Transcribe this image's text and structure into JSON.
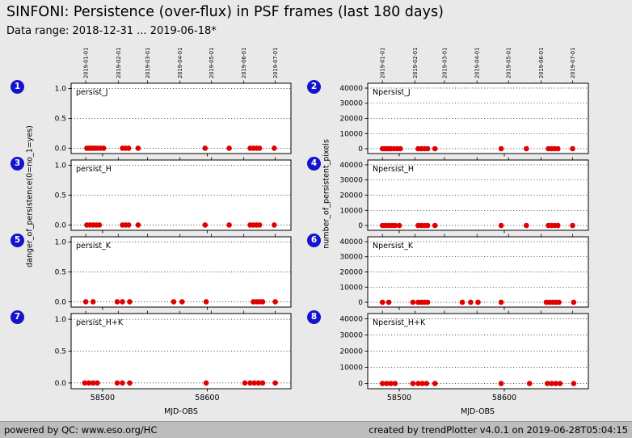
{
  "header": {
    "title": "SINFONI: Persistence (over-flux) in PSF frames (last 180 days)",
    "subtitle": "Data range: 2018-12-31 ... 2019-06-18*"
  },
  "footer": {
    "left": "powered by QC: www.eso.org/HC",
    "right": "created by trendPlotter v4.0.1 on 2019-06-28T05:04:15"
  },
  "colors": {
    "point": "#e00000",
    "badge": "#1414cc",
    "background": "#e9e9e9",
    "footer_bg": "#bdbdbd",
    "plot_bg": "#ffffff"
  },
  "axes": {
    "left_ylabel": "danger_of_persistence(0=no_1=yes)",
    "right_ylabel": "number_of_persistent_pixels",
    "xlabel": "MJD-OBS",
    "x_ticks": [
      58500,
      58600
    ],
    "x_range": [
      58470,
      58680
    ],
    "top_dates": [
      {
        "label": "2019-01-01",
        "mjd": 58484
      },
      {
        "label": "2019-02-01",
        "mjd": 58515
      },
      {
        "label": "2019-03-01",
        "mjd": 58543
      },
      {
        "label": "2019-04-01",
        "mjd": 58574
      },
      {
        "label": "2019-05-01",
        "mjd": 58604
      },
      {
        "label": "2019-06-01",
        "mjd": 58635
      },
      {
        "label": "2019-07-01",
        "mjd": 58665
      }
    ],
    "left_y": {
      "ticks": [
        0.0,
        0.5,
        1.0
      ],
      "labels": [
        "0.0",
        "0.5",
        "1.0"
      ],
      "range": [
        -0.09,
        1.09
      ]
    },
    "right_y": {
      "ticks": [
        0,
        10000,
        20000,
        30000,
        40000
      ],
      "labels": [
        "0",
        "10000",
        "20000",
        "30000",
        "40000"
      ],
      "range": [
        -3200,
        43200
      ]
    }
  },
  "chart_data": [
    {
      "id": 1,
      "type": "scatter",
      "label": "persist_J",
      "column": "left",
      "y_constant": 0,
      "x": [
        58485,
        58487,
        58489,
        58491,
        58493,
        58495,
        58498,
        58501,
        58519,
        58522,
        58525,
        58534,
        58598,
        58621,
        58641,
        58644,
        58647,
        58650,
        58664
      ]
    },
    {
      "id": 2,
      "type": "scatter",
      "label": "Npersist_J",
      "column": "right",
      "y_constant": 0,
      "x": [
        58484,
        58486,
        58488,
        58490,
        58492,
        58495,
        58498,
        58501,
        58518,
        58521,
        58524,
        58527,
        58534,
        58597,
        58621,
        58642,
        58645,
        58648,
        58651,
        58665
      ]
    },
    {
      "id": 3,
      "type": "scatter",
      "label": "persist_H",
      "column": "left",
      "y_constant": 0,
      "x": [
        58485,
        58488,
        58491,
        58494,
        58497,
        58519,
        58522,
        58525,
        58534,
        58598,
        58621,
        58641,
        58644,
        58647,
        58650,
        58664
      ]
    },
    {
      "id": 4,
      "type": "scatter",
      "label": "Npersist_H",
      "column": "right",
      "y_constant": 0,
      "x": [
        58484,
        58487,
        58490,
        58493,
        58496,
        58500,
        58518,
        58521,
        58524,
        58527,
        58534,
        58597,
        58621,
        58642,
        58645,
        58648,
        58651,
        58665
      ]
    },
    {
      "id": 5,
      "type": "scatter",
      "label": "persist_K",
      "column": "left",
      "y_constant": 0,
      "x": [
        58484,
        58491,
        58514,
        58519,
        58526,
        58568,
        58576,
        58599,
        58644,
        58647,
        58650,
        58653,
        58665
      ]
    },
    {
      "id": 6,
      "type": "scatter",
      "label": "Npersist_K",
      "column": "right",
      "y_constant": 0,
      "x": [
        58484,
        58490,
        58513,
        58518,
        58521,
        58524,
        58527,
        58560,
        58568,
        58575,
        58597,
        58640,
        58643,
        58646,
        58649,
        58652,
        58666
      ]
    },
    {
      "id": 7,
      "type": "scatter",
      "label": "persist_H+K",
      "column": "left",
      "y_constant": 0,
      "x": [
        58483,
        58487,
        58491,
        58495,
        58514,
        58519,
        58526,
        58599,
        58636,
        58641,
        58645,
        58649,
        58653,
        58665
      ]
    },
    {
      "id": 8,
      "type": "scatter",
      "label": "Npersist_H+K",
      "column": "right",
      "y_constant": 0,
      "x": [
        58484,
        58488,
        58492,
        58496,
        58513,
        58518,
        58522,
        58526,
        58534,
        58597,
        58624,
        58641,
        58645,
        58649,
        58653,
        58666
      ]
    }
  ]
}
